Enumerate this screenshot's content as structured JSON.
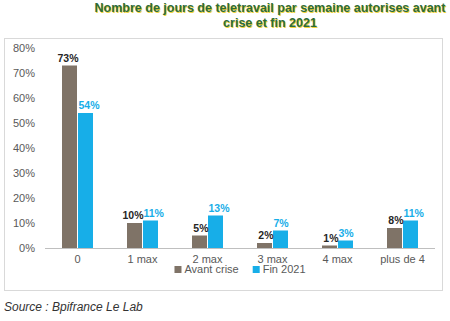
{
  "chart_data": {
    "type": "bar",
    "title": "Nombre de jours de teletravail par semaine autorises avant crise et fin 2021",
    "source": "Source : Bpifrance Le Lab",
    "categories": [
      "0",
      "1 max",
      "2 max",
      "3 max",
      "4 max",
      "plus de 4"
    ],
    "series": [
      {
        "name": "Avant crise",
        "color": "#7f7367",
        "values": [
          73,
          10,
          5,
          2,
          1,
          8
        ],
        "value_labels": [
          "73%",
          "10%",
          "5%",
          "2%",
          "1%",
          "8%"
        ]
      },
      {
        "name": "Fin 2021",
        "color": "#17aee8",
        "values": [
          54,
          11,
          13,
          7,
          3,
          11
        ],
        "value_labels": [
          "54%",
          "11%",
          "13%",
          "7%",
          "3%",
          "11%"
        ]
      }
    ],
    "ylim": [
      0,
      80
    ],
    "yticks": [
      {
        "value": 0,
        "label": "0%"
      },
      {
        "value": 10,
        "label": "10%"
      },
      {
        "value": 20,
        "label": "20%"
      },
      {
        "value": 30,
        "label": "30%"
      },
      {
        "value": 40,
        "label": "40%"
      },
      {
        "value": 50,
        "label": "50%"
      },
      {
        "value": 60,
        "label": "60%"
      },
      {
        "value": 70,
        "label": "70%"
      },
      {
        "value": 80,
        "label": "80%"
      }
    ],
    "grid": false,
    "data_labels": true,
    "legend": "bottom"
  }
}
